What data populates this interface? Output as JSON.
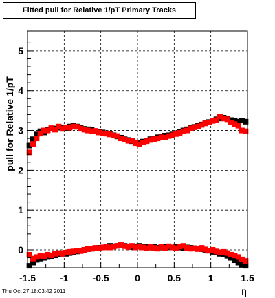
{
  "footer": {
    "timestamp": "Thu Oct 27 18:03:42 2011"
  },
  "chart_data": {
    "type": "scatter",
    "title": "Fitted pull for Relative 1/pT  Primary Tracks",
    "xlabel": "η",
    "ylabel": "pull for Relative 1/pT",
    "xlim": [
      -1.5,
      1.5
    ],
    "ylim": [
      -0.45,
      5.5
    ],
    "xticks": [
      -1.5,
      -1,
      -0.5,
      0,
      0.5,
      1,
      1.5
    ],
    "xtick_labels": [
      "-1.5",
      "-1",
      "-0.5",
      "0",
      "0.5",
      "1",
      "1.5"
    ],
    "yticks": [
      0,
      1,
      2,
      3,
      4,
      5
    ],
    "ytick_labels": [
      "0",
      "1",
      "2",
      "3",
      "4",
      "5"
    ],
    "grid": true,
    "colors": {
      "black": "#000000",
      "red": "#ff0000"
    },
    "series": [
      {
        "color": "black",
        "values": [
          [
            -1.475,
            2.62
          ],
          [
            -1.425,
            2.78
          ],
          [
            -1.375,
            2.9
          ],
          [
            -1.325,
            2.98
          ],
          [
            -1.275,
            2.95
          ],
          [
            -1.225,
            3.02
          ],
          [
            -1.175,
            3.05
          ],
          [
            -1.125,
            3.05
          ],
          [
            -1.075,
            3.07
          ],
          [
            -1.025,
            3.08
          ],
          [
            -0.975,
            3.06
          ],
          [
            -0.925,
            3.1
          ],
          [
            -0.875,
            3.12
          ],
          [
            -0.825,
            3.1
          ],
          [
            -0.775,
            3.07
          ],
          [
            -0.725,
            3.04
          ],
          [
            -0.675,
            3.03
          ],
          [
            -0.625,
            3.01
          ],
          [
            -0.575,
            2.98
          ],
          [
            -0.525,
            2.96
          ],
          [
            -0.475,
            2.95
          ],
          [
            -0.425,
            2.93
          ],
          [
            -0.375,
            2.91
          ],
          [
            -0.325,
            2.88
          ],
          [
            -0.275,
            2.85
          ],
          [
            -0.225,
            2.82
          ],
          [
            -0.175,
            2.78
          ],
          [
            -0.125,
            2.76
          ],
          [
            -0.075,
            2.73
          ],
          [
            -0.025,
            2.7
          ],
          [
            0.025,
            2.68
          ],
          [
            0.075,
            2.72
          ],
          [
            0.125,
            2.75
          ],
          [
            0.175,
            2.78
          ],
          [
            0.225,
            2.8
          ],
          [
            0.275,
            2.83
          ],
          [
            0.325,
            2.85
          ],
          [
            0.375,
            2.87
          ],
          [
            0.425,
            2.88
          ],
          [
            0.475,
            2.9
          ],
          [
            0.525,
            2.93
          ],
          [
            0.575,
            2.96
          ],
          [
            0.625,
            3.0
          ],
          [
            0.675,
            3.03
          ],
          [
            0.725,
            3.06
          ],
          [
            0.775,
            3.09
          ],
          [
            0.825,
            3.12
          ],
          [
            0.875,
            3.15
          ],
          [
            0.925,
            3.18
          ],
          [
            0.975,
            3.21
          ],
          [
            1.025,
            3.25
          ],
          [
            1.075,
            3.28
          ],
          [
            1.125,
            3.3
          ],
          [
            1.175,
            3.32
          ],
          [
            1.225,
            3.3
          ],
          [
            1.275,
            3.26
          ],
          [
            1.325,
            3.24
          ],
          [
            1.375,
            3.22
          ],
          [
            1.425,
            3.25
          ],
          [
            1.475,
            3.22
          ],
          [
            -1.475,
            -0.4
          ],
          [
            -1.425,
            -0.32
          ],
          [
            -1.375,
            -0.25
          ],
          [
            -1.325,
            -0.22
          ],
          [
            -1.275,
            -0.2
          ],
          [
            -1.225,
            -0.18
          ],
          [
            -1.175,
            -0.16
          ],
          [
            -1.125,
            -0.14
          ],
          [
            -1.075,
            -0.12
          ],
          [
            -1.025,
            -0.1
          ],
          [
            -0.975,
            -0.1
          ],
          [
            -0.925,
            -0.08
          ],
          [
            -0.875,
            -0.06
          ],
          [
            -0.825,
            -0.04
          ],
          [
            -0.775,
            -0.02
          ],
          [
            -0.725,
            0.0
          ],
          [
            -0.675,
            0.02
          ],
          [
            -0.625,
            0.03
          ],
          [
            -0.575,
            0.04
          ],
          [
            -0.525,
            0.05
          ],
          [
            -0.475,
            0.06
          ],
          [
            -0.425,
            0.08
          ],
          [
            -0.375,
            0.1
          ],
          [
            -0.325,
            0.09
          ],
          [
            -0.275,
            0.1
          ],
          [
            -0.225,
            0.11
          ],
          [
            -0.175,
            0.1
          ],
          [
            -0.125,
            0.08
          ],
          [
            -0.075,
            0.07
          ],
          [
            -0.025,
            0.08
          ],
          [
            0.025,
            0.1
          ],
          [
            0.075,
            0.08
          ],
          [
            0.125,
            0.07
          ],
          [
            0.175,
            0.06
          ],
          [
            0.225,
            0.07
          ],
          [
            0.275,
            0.05
          ],
          [
            0.325,
            0.06
          ],
          [
            0.375,
            0.08
          ],
          [
            0.425,
            0.07
          ],
          [
            0.475,
            0.06
          ],
          [
            0.525,
            0.08
          ],
          [
            0.575,
            0.06
          ],
          [
            0.625,
            0.05
          ],
          [
            0.675,
            0.06
          ],
          [
            0.725,
            0.05
          ],
          [
            0.775,
            0.04
          ],
          [
            0.825,
            0.03
          ],
          [
            0.875,
            0.02
          ],
          [
            0.925,
            0.0
          ],
          [
            0.975,
            -0.02
          ],
          [
            1.025,
            -0.05
          ],
          [
            1.075,
            -0.07
          ],
          [
            1.125,
            -0.1
          ],
          [
            1.175,
            -0.12
          ],
          [
            1.225,
            -0.15
          ],
          [
            1.275,
            -0.2
          ],
          [
            1.325,
            -0.26
          ],
          [
            1.375,
            -0.32
          ],
          [
            1.425,
            -0.37
          ],
          [
            1.475,
            -0.4
          ]
        ]
      },
      {
        "color": "red",
        "values": [
          [
            -1.475,
            2.45
          ],
          [
            -1.425,
            2.66
          ],
          [
            -1.375,
            2.8
          ],
          [
            -1.325,
            2.92
          ],
          [
            -1.275,
            3.0
          ],
          [
            -1.225,
            3.0
          ],
          [
            -1.175,
            3.06
          ],
          [
            -1.125,
            3.02
          ],
          [
            -1.075,
            3.1
          ],
          [
            -1.025,
            3.04
          ],
          [
            -0.975,
            3.08
          ],
          [
            -0.925,
            3.07
          ],
          [
            -0.875,
            3.1
          ],
          [
            -0.825,
            3.09
          ],
          [
            -0.775,
            3.05
          ],
          [
            -0.725,
            3.02
          ],
          [
            -0.675,
            3.0
          ],
          [
            -0.625,
            2.98
          ],
          [
            -0.575,
            2.99
          ],
          [
            -0.525,
            2.95
          ],
          [
            -0.475,
            2.93
          ],
          [
            -0.425,
            2.92
          ],
          [
            -0.375,
            2.9
          ],
          [
            -0.325,
            2.87
          ],
          [
            -0.275,
            2.86
          ],
          [
            -0.225,
            2.8
          ],
          [
            -0.175,
            2.77
          ],
          [
            -0.125,
            2.74
          ],
          [
            -0.075,
            2.74
          ],
          [
            -0.025,
            2.68
          ],
          [
            0.025,
            2.65
          ],
          [
            0.075,
            2.7
          ],
          [
            0.125,
            2.73
          ],
          [
            0.175,
            2.76
          ],
          [
            0.225,
            2.78
          ],
          [
            0.275,
            2.8
          ],
          [
            0.325,
            2.83
          ],
          [
            0.375,
            2.82
          ],
          [
            0.425,
            2.86
          ],
          [
            0.475,
            2.88
          ],
          [
            0.525,
            2.91
          ],
          [
            0.575,
            2.94
          ],
          [
            0.625,
            2.98
          ],
          [
            0.675,
            3.0
          ],
          [
            0.725,
            3.05
          ],
          [
            0.775,
            3.08
          ],
          [
            0.825,
            3.1
          ],
          [
            0.875,
            3.14
          ],
          [
            0.925,
            3.18
          ],
          [
            0.975,
            3.2
          ],
          [
            1.025,
            3.24
          ],
          [
            1.075,
            3.26
          ],
          [
            1.125,
            3.35
          ],
          [
            1.175,
            3.3
          ],
          [
            1.225,
            3.28
          ],
          [
            1.275,
            3.2
          ],
          [
            1.325,
            3.16
          ],
          [
            1.375,
            3.12
          ],
          [
            1.425,
            3.0
          ],
          [
            1.475,
            2.98
          ],
          [
            -1.475,
            -0.12
          ],
          [
            -1.425,
            -0.22
          ],
          [
            -1.375,
            -0.18
          ],
          [
            -1.325,
            -0.15
          ],
          [
            -1.275,
            -0.16
          ],
          [
            -1.225,
            -0.12
          ],
          [
            -1.175,
            -0.14
          ],
          [
            -1.125,
            -0.1
          ],
          [
            -1.075,
            -0.08
          ],
          [
            -1.025,
            -0.1
          ],
          [
            -0.975,
            -0.07
          ],
          [
            -0.925,
            -0.05
          ],
          [
            -0.875,
            -0.04
          ],
          [
            -0.825,
            -0.02
          ],
          [
            -0.775,
            -0.03
          ],
          [
            -0.725,
            0.0
          ],
          [
            -0.675,
            0.02
          ],
          [
            -0.625,
            0.03
          ],
          [
            -0.575,
            0.05
          ],
          [
            -0.525,
            0.04
          ],
          [
            -0.475,
            0.06
          ],
          [
            -0.425,
            0.07
          ],
          [
            -0.375,
            0.06
          ],
          [
            -0.325,
            0.08
          ],
          [
            -0.275,
            0.1
          ],
          [
            -0.225,
            0.12
          ],
          [
            -0.175,
            0.09
          ],
          [
            -0.125,
            0.07
          ],
          [
            -0.075,
            0.1
          ],
          [
            -0.025,
            0.06
          ],
          [
            0.025,
            0.08
          ],
          [
            0.075,
            0.06
          ],
          [
            0.125,
            0.04
          ],
          [
            0.175,
            0.07
          ],
          [
            0.225,
            0.05
          ],
          [
            0.275,
            0.03
          ],
          [
            0.325,
            0.07
          ],
          [
            0.375,
            0.05
          ],
          [
            0.425,
            0.09
          ],
          [
            0.475,
            0.06
          ],
          [
            0.525,
            0.04
          ],
          [
            0.575,
            0.08
          ],
          [
            0.625,
            0.1
          ],
          [
            0.675,
            0.05
          ],
          [
            0.725,
            0.03
          ],
          [
            0.775,
            0.04
          ],
          [
            0.825,
            0.02
          ],
          [
            0.875,
            0.05
          ],
          [
            0.925,
            0.01
          ],
          [
            0.975,
            -0.02
          ],
          [
            1.025,
            0.0
          ],
          [
            1.075,
            -0.04
          ],
          [
            1.125,
            -0.06
          ],
          [
            1.175,
            -0.05
          ],
          [
            1.225,
            -0.08
          ],
          [
            1.275,
            -0.12
          ],
          [
            1.325,
            -0.14
          ],
          [
            1.375,
            -0.18
          ],
          [
            1.425,
            -0.24
          ],
          [
            1.475,
            -0.28
          ]
        ]
      }
    ]
  }
}
